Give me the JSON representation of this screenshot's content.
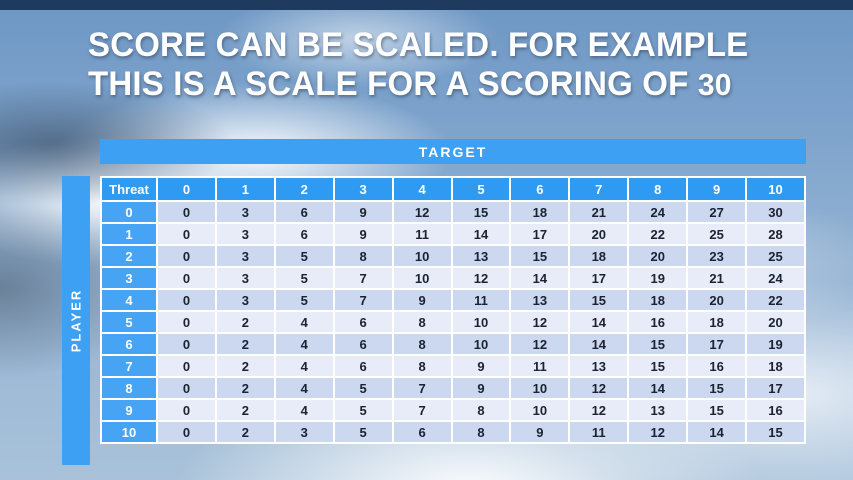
{
  "slide": {
    "title_line1": "SCORE CAN BE SCALED. FOR EXAMPLE",
    "title_line2_prefix": "THIS IS A SCALE FOR A SCORING OF ",
    "title_line2_number": "30"
  },
  "table": {
    "target_label": "TARGET",
    "player_label": "PLAYER",
    "corner_label": "Threat",
    "col_headers": [
      "0",
      "1",
      "2",
      "3",
      "4",
      "5",
      "6",
      "7",
      "8",
      "9",
      "10"
    ],
    "rows": [
      {
        "header": "0",
        "values": [
          0,
          3,
          6,
          9,
          12,
          15,
          18,
          21,
          24,
          27,
          30
        ]
      },
      {
        "header": "1",
        "values": [
          0,
          3,
          6,
          9,
          11,
          14,
          17,
          20,
          22,
          25,
          28
        ]
      },
      {
        "header": "2",
        "values": [
          0,
          3,
          5,
          8,
          10,
          13,
          15,
          18,
          20,
          23,
          25
        ]
      },
      {
        "header": "3",
        "values": [
          0,
          3,
          5,
          7,
          10,
          12,
          14,
          17,
          19,
          21,
          24
        ]
      },
      {
        "header": "4",
        "values": [
          0,
          3,
          5,
          7,
          9,
          11,
          13,
          15,
          18,
          20,
          22
        ]
      },
      {
        "header": "5",
        "values": [
          0,
          2,
          4,
          6,
          8,
          10,
          12,
          14,
          16,
          18,
          20
        ]
      },
      {
        "header": "6",
        "values": [
          0,
          2,
          4,
          6,
          8,
          10,
          12,
          14,
          15,
          17,
          19
        ]
      },
      {
        "header": "7",
        "values": [
          0,
          2,
          4,
          6,
          8,
          9,
          11,
          13,
          15,
          16,
          18
        ]
      },
      {
        "header": "8",
        "values": [
          0,
          2,
          4,
          5,
          7,
          9,
          10,
          12,
          14,
          15,
          17
        ]
      },
      {
        "header": "9",
        "values": [
          0,
          2,
          4,
          5,
          7,
          8,
          10,
          12,
          13,
          15,
          16
        ]
      },
      {
        "header": "10",
        "values": [
          0,
          2,
          3,
          5,
          6,
          8,
          9,
          11,
          12,
          14,
          15
        ]
      }
    ]
  },
  "colors": {
    "accent_blue": "#3da0f2",
    "header_blue": "#2e9af1",
    "row_header_blue": "#47a4f4",
    "row_band_dark": "#ccd8ef",
    "row_band_light": "#e7ecf8",
    "top_bar": "#1e3a5f",
    "title_text": "#ffffff",
    "cell_text": "#1b2230"
  }
}
